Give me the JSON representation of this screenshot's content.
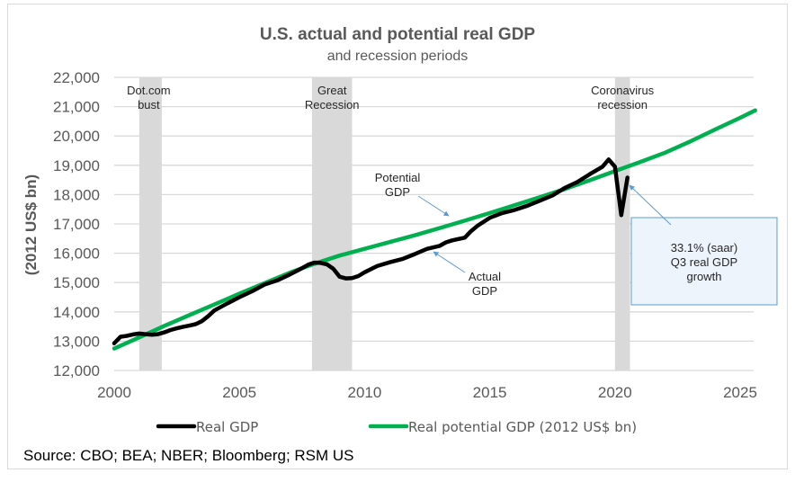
{
  "chart_data": {
    "type": "line",
    "title": "U.S. actual and potential real GDP",
    "subtitle": "and recession periods",
    "xlabel": "",
    "ylabel": "(2012 US$ bn)",
    "xlim": [
      2000,
      2025.6
    ],
    "ylim": [
      12000,
      22000
    ],
    "x_ticks": [
      "2000",
      "2005",
      "2010",
      "2015",
      "2020",
      "2025"
    ],
    "x_tick_values": [
      2000,
      2005,
      2010,
      2015,
      2020,
      2025
    ],
    "y_ticks": [
      "12,000",
      "13,000",
      "14,000",
      "15,000",
      "16,000",
      "17,000",
      "18,000",
      "19,000",
      "20,000",
      "21,000",
      "22,000"
    ],
    "y_tick_values": [
      12000,
      13000,
      14000,
      15000,
      16000,
      17000,
      18000,
      19000,
      20000,
      21000,
      22000
    ],
    "grid": "horizontal",
    "legend_position": "bottom",
    "recessions": [
      {
        "name": "Dot.com bust",
        "label_lines": [
          "Dot.com",
          "bust"
        ],
        "start": 2001.0,
        "end": 2001.9
      },
      {
        "name": "Great Recession",
        "label_lines": [
          "Great",
          "Recession"
        ],
        "start": 2007.9,
        "end": 2009.5
      },
      {
        "name": "Coronavirus recession",
        "label_lines": [
          "Coronavirus",
          "recession"
        ],
        "start": 2020.0,
        "end": 2020.6
      }
    ],
    "series": [
      {
        "name": "Real GDP",
        "color": "#000000",
        "x": [
          2000.0,
          2000.25,
          2000.5,
          2000.75,
          2001.0,
          2001.25,
          2001.5,
          2001.75,
          2002.0,
          2002.25,
          2002.5,
          2002.75,
          2003.0,
          2003.25,
          2003.5,
          2003.75,
          2004.0,
          2004.5,
          2005.0,
          2005.5,
          2006.0,
          2006.5,
          2007.0,
          2007.5,
          2007.75,
          2008.0,
          2008.25,
          2008.5,
          2008.75,
          2009.0,
          2009.25,
          2009.5,
          2009.75,
          2010.0,
          2010.5,
          2011.0,
          2011.5,
          2012.0,
          2012.5,
          2013.0,
          2013.25,
          2013.5,
          2014.0,
          2014.25,
          2014.5,
          2015.0,
          2015.5,
          2016.0,
          2016.5,
          2017.0,
          2017.5,
          2018.0,
          2018.5,
          2019.0,
          2019.5,
          2019.75,
          2020.0,
          2020.25,
          2020.5
        ],
        "values": [
          12930,
          13150,
          13180,
          13230,
          13260,
          13240,
          13220,
          13240,
          13300,
          13380,
          13440,
          13490,
          13530,
          13580,
          13680,
          13850,
          14050,
          14280,
          14500,
          14700,
          14930,
          15070,
          15270,
          15490,
          15610,
          15680,
          15670,
          15620,
          15470,
          15200,
          15140,
          15150,
          15220,
          15350,
          15560,
          15690,
          15800,
          15970,
          16150,
          16250,
          16370,
          16440,
          16530,
          16750,
          16930,
          17210,
          17370,
          17480,
          17620,
          17790,
          17970,
          18230,
          18430,
          18700,
          18950,
          19200,
          18950,
          17300,
          18580
        ]
      },
      {
        "name": "Real potential GDP (2012 US$ bn)",
        "color": "#00b050",
        "x": [
          2000.0,
          2001.0,
          2002.0,
          2003.0,
          2004.0,
          2005.0,
          2006.0,
          2007.0,
          2008.0,
          2009.0,
          2010.0,
          2011.0,
          2012.0,
          2013.0,
          2014.0,
          2015.0,
          2016.0,
          2017.0,
          2018.0,
          2019.0,
          2020.0,
          2021.0,
          2022.0,
          2023.0,
          2024.0,
          2025.0,
          2025.6
        ],
        "values": [
          12750,
          13130,
          13520,
          13890,
          14250,
          14620,
          14980,
          15330,
          15640,
          15920,
          16150,
          16380,
          16610,
          16860,
          17110,
          17370,
          17640,
          17910,
          18190,
          18490,
          18800,
          19110,
          19430,
          19810,
          20220,
          20620,
          20870
        ]
      }
    ],
    "annotations": [
      {
        "text_lines": [
          "Potential",
          "GDP"
        ],
        "target": "Real potential GDP"
      },
      {
        "text_lines": [
          "Actual",
          "GDP"
        ],
        "target": "Real GDP"
      },
      {
        "text_lines": [
          "33.1% (saar)",
          "Q3 real GDP",
          "growth"
        ],
        "target": "Real GDP 2020 Q3"
      }
    ],
    "legend": [
      {
        "label": "Real GDP",
        "color": "#000000"
      },
      {
        "label": "Real potential GDP (2012 US$ bn)",
        "color": "#00b050"
      }
    ],
    "source": "Source: CBO; BEA; NBER; Bloomberg; RSM US"
  },
  "colors": {
    "recession_band": "#d9d9d9",
    "gridline": "#d9d9d9",
    "callout_fill": "#eef4fb",
    "callout_border": "#5b9bd5",
    "arrow": "#5b9bd5"
  }
}
